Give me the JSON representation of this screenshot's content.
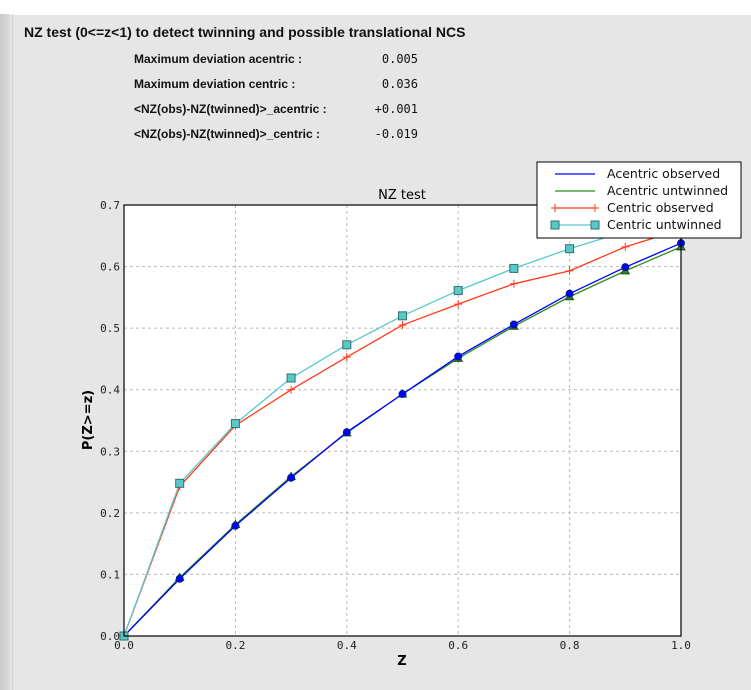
{
  "header": {
    "title": "NZ test (0<=z<1) to detect twinning and possible translational NCS"
  },
  "stats": [
    {
      "label": "Maximum deviation acentric :",
      "value": "0.005"
    },
    {
      "label": "Maximum deviation centric :",
      "value": "0.036"
    },
    {
      "label": "<NZ(obs)-NZ(twinned)>_acentric :",
      "value": "+0.001"
    },
    {
      "label": "<NZ(obs)-NZ(twinned)>_centric :",
      "value": "-0.019"
    }
  ],
  "chart_data": {
    "type": "line",
    "title": "NZ test",
    "xlabel": "Z",
    "ylabel": "P(Z>=z)",
    "xlim": [
      0.0,
      1.0
    ],
    "ylim": [
      0.0,
      0.7
    ],
    "xticks": [
      "0.0",
      "0.2",
      "0.4",
      "0.6",
      "0.8",
      "1.0"
    ],
    "yticks": [
      "0.0",
      "0.1",
      "0.2",
      "0.3",
      "0.4",
      "0.5",
      "0.6",
      "0.7"
    ],
    "grid": true,
    "legend_position": "top-right",
    "x": [
      0.0,
      0.1,
      0.2,
      0.3,
      0.4,
      0.5,
      0.6,
      0.7,
      0.8,
      0.9,
      1.0
    ],
    "series": [
      {
        "name": "Acentric observed",
        "color": "#0000ff",
        "marker": "circle",
        "values": [
          0.0,
          0.093,
          0.179,
          0.257,
          0.331,
          0.393,
          0.454,
          0.506,
          0.556,
          0.599,
          0.638
        ]
      },
      {
        "name": "Acentric untwinned",
        "color": "#2e8b22",
        "marker": "triangle",
        "values": [
          0.0,
          0.095,
          0.181,
          0.259,
          0.33,
          0.393,
          0.451,
          0.503,
          0.551,
          0.593,
          0.632
        ]
      },
      {
        "name": "Centric observed",
        "color": "#ff3a1a",
        "marker": "plus",
        "values": [
          0.0,
          0.243,
          0.342,
          0.4,
          0.453,
          0.505,
          0.539,
          0.572,
          0.593,
          0.632,
          0.66
        ]
      },
      {
        "name": "Centric untwinned",
        "color": "#5bc8c8",
        "marker": "square",
        "values": [
          0.0,
          0.248,
          0.345,
          0.419,
          0.473,
          0.52,
          0.561,
          0.597,
          0.629,
          0.657,
          0.683
        ]
      }
    ]
  }
}
